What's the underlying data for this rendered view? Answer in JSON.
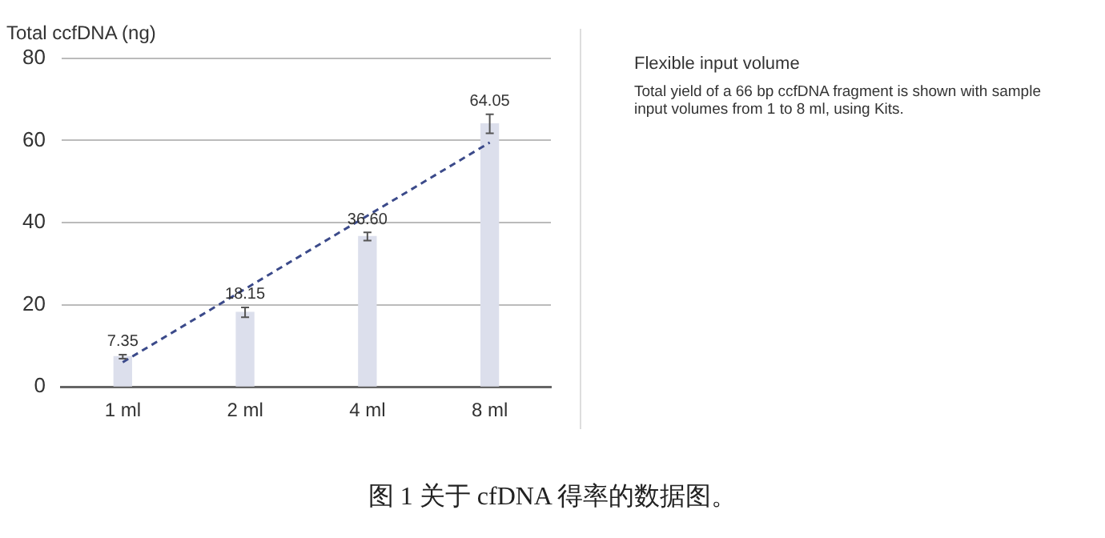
{
  "chart_data": {
    "type": "bar",
    "title": "Flexible input volume",
    "ylabel": "Total ccfDNA (ng)",
    "categories": [
      "1 ml",
      "2 ml",
      "4 ml",
      "8 ml"
    ],
    "series": [
      {
        "color": "#dcdfec",
        "values": [
          7.35,
          18.15,
          36.6,
          64.05
        ],
        "errors": [
          0.5,
          1.2,
          1,
          2.3
        ],
        "value_labels": [
          "7.35",
          "18.15",
          "36.60",
          "64.05"
        ]
      },
      {
        "type": "line",
        "color": "#3b4a8a",
        "x": [
          "1 ml",
          "8 ml"
        ],
        "values": [
          6,
          59.5
        ],
        "line_style": "dashed"
      }
    ],
    "ylim": [
      0,
      80
    ],
    "yticks": [
      0,
      20,
      40,
      60,
      80
    ],
    "grid": "y",
    "legend": false,
    "annotations": [
      "Total yield of a 66 bp ccfDNA fragment is shown with sample input volumes from 1 to 8 ml, using Kits.",
      "图 1 关于 cfDNA 得率的数据图。"
    ]
  }
}
